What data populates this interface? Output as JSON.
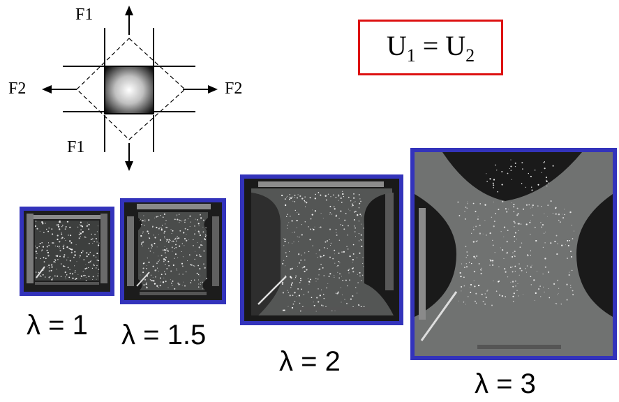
{
  "schematic": {
    "force_top": "F1",
    "force_bottom": "F1",
    "force_left": "F2",
    "force_right": "F2"
  },
  "equation": {
    "left": "U",
    "left_sub": "1",
    "op": " = ",
    "right": "U",
    "right_sub": "2"
  },
  "samples": [
    {
      "label": "λ = 1",
      "stretch": 1
    },
    {
      "label": "λ = 1.5",
      "stretch": 1.5
    },
    {
      "label": "λ = 2",
      "stretch": 2
    },
    {
      "label": "λ = 3",
      "stretch": 3
    }
  ],
  "colors": {
    "frame": "#3333bb",
    "equation_border": "#dd1111",
    "specimen": "#6f7271",
    "background_dark": "#1c1c1c"
  }
}
